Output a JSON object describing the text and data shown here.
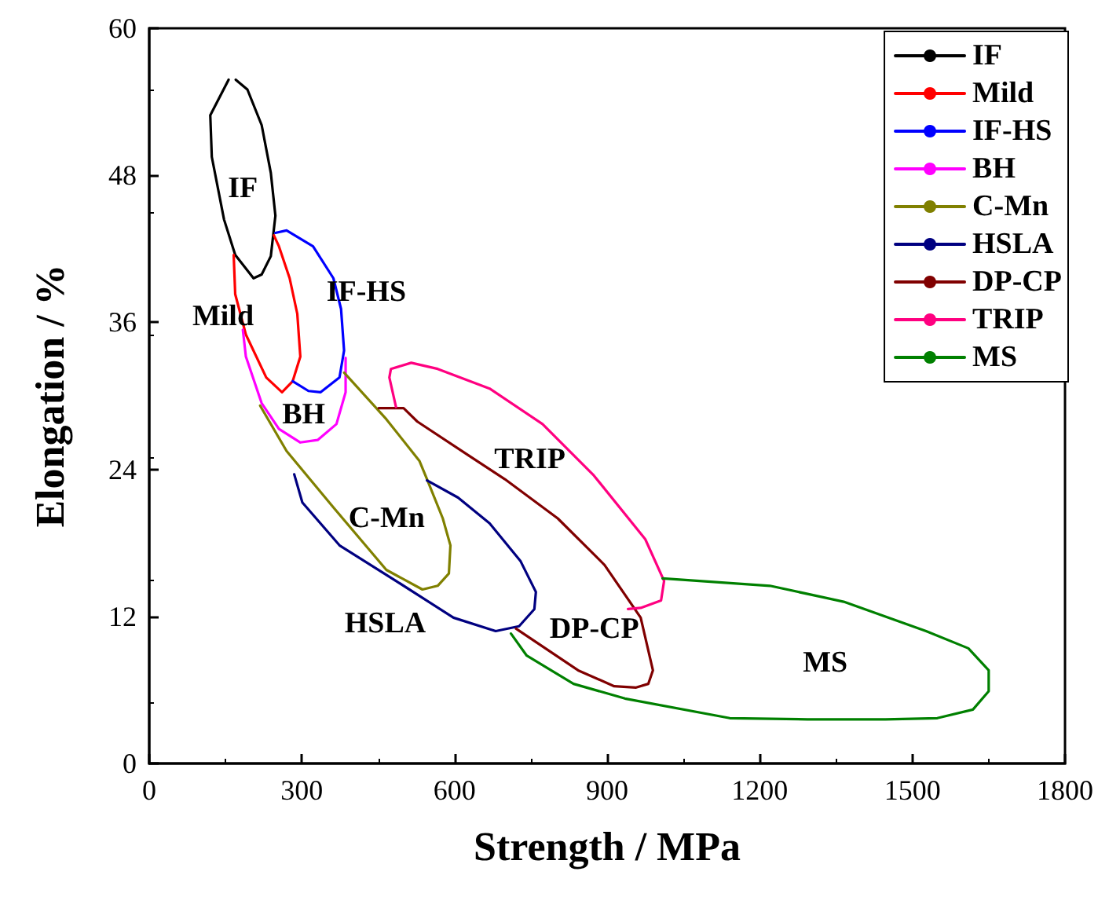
{
  "chart_data": {
    "type": "line",
    "xlabel": "Strength / MPa",
    "ylabel": "Elongation / %",
    "xlim": [
      0,
      1800
    ],
    "xticks": [
      0,
      300,
      600,
      900,
      1200,
      1500,
      1800
    ],
    "ylim": [
      0,
      60
    ],
    "yticks": [
      0,
      12,
      24,
      36,
      48,
      60
    ],
    "grid": false,
    "legend": "top right",
    "marker": "none",
    "line_style": "solid",
    "series": [
      {
        "name": "IF",
        "color": "#000000",
        "x": [
          156,
          120,
          123,
          147,
          169,
          205,
          221,
          239,
          248,
          239,
          221,
          193,
          170
        ],
        "values": [
          55.8,
          52.9,
          49.5,
          44.4,
          41.5,
          39.6,
          39.9,
          41.4,
          44.7,
          48.2,
          52.1,
          55.0,
          55.8
        ]
      },
      {
        "name": "Mild",
        "color": "#ff0000",
        "x": [
          166,
          169,
          190,
          230,
          261,
          282,
          297,
          291,
          276,
          255,
          245
        ],
        "values": [
          41.5,
          38.3,
          35.0,
          31.5,
          30.3,
          31.2,
          33.2,
          36.7,
          39.6,
          42.2,
          43.1
        ]
      },
      {
        "name": "IF-HS",
        "color": "#0000ff",
        "x": [
          248,
          270,
          322,
          362,
          377,
          383,
          374,
          337,
          313,
          282
        ],
        "values": [
          43.3,
          43.5,
          42.2,
          39.6,
          37.1,
          33.7,
          31.5,
          30.3,
          30.4,
          31.2
        ]
      },
      {
        "name": "BH",
        "color": "#ff00ff",
        "x": [
          184,
          190,
          221,
          255,
          297,
          331,
          368,
          386,
          386
        ],
        "values": [
          35.4,
          33.2,
          29.4,
          27.3,
          26.2,
          26.4,
          27.7,
          30.3,
          33.1
        ]
      },
      {
        "name": "C-Mn",
        "color": "#808000",
        "x": [
          218,
          270,
          362,
          466,
          537,
          567,
          589,
          592,
          577,
          546,
          531,
          466,
          383
        ],
        "values": [
          29.2,
          25.5,
          20.9,
          15.8,
          14.2,
          14.5,
          15.5,
          17.8,
          20.0,
          23.2,
          24.7,
          28.1,
          31.9
        ]
      },
      {
        "name": "HSLA",
        "color": "#000080",
        "x": [
          285,
          301,
          374,
          485,
          598,
          681,
          727,
          757,
          760,
          730,
          669,
          607,
          546
        ],
        "values": [
          23.6,
          21.3,
          17.8,
          14.9,
          11.9,
          10.8,
          11.2,
          12.6,
          14.0,
          16.5,
          19.6,
          21.7,
          23.1
        ]
      },
      {
        "name": "DP-CP",
        "color": "#800000",
        "x": [
          451,
          500,
          527,
          629,
          699,
          803,
          895,
          966,
          990,
          981,
          957,
          914,
          843,
          721
        ],
        "values": [
          29.0,
          29.0,
          27.9,
          25.1,
          23.2,
          20.0,
          16.2,
          11.9,
          7.6,
          6.5,
          6.2,
          6.3,
          7.6,
          11.0
        ]
      },
      {
        "name": "TRIP",
        "color": "#ff0080",
        "x": [
          485,
          472,
          475,
          515,
          567,
          669,
          773,
          874,
          975,
          1012,
          1006,
          966,
          941
        ],
        "values": [
          29.1,
          31.5,
          32.2,
          32.7,
          32.2,
          30.6,
          27.7,
          23.5,
          18.3,
          14.9,
          13.3,
          12.7,
          12.6
        ]
      },
      {
        "name": "MS",
        "color": "#008000",
        "x": [
          1009,
          1220,
          1365,
          1527,
          1610,
          1650,
          1650,
          1619,
          1549,
          1447,
          1294,
          1141,
          935,
          834,
          742,
          711
        ],
        "values": [
          15.1,
          14.5,
          13.2,
          10.8,
          9.4,
          7.6,
          5.9,
          4.4,
          3.7,
          3.6,
          3.6,
          3.7,
          5.3,
          6.5,
          8.8,
          10.6
        ]
      }
    ]
  }
}
